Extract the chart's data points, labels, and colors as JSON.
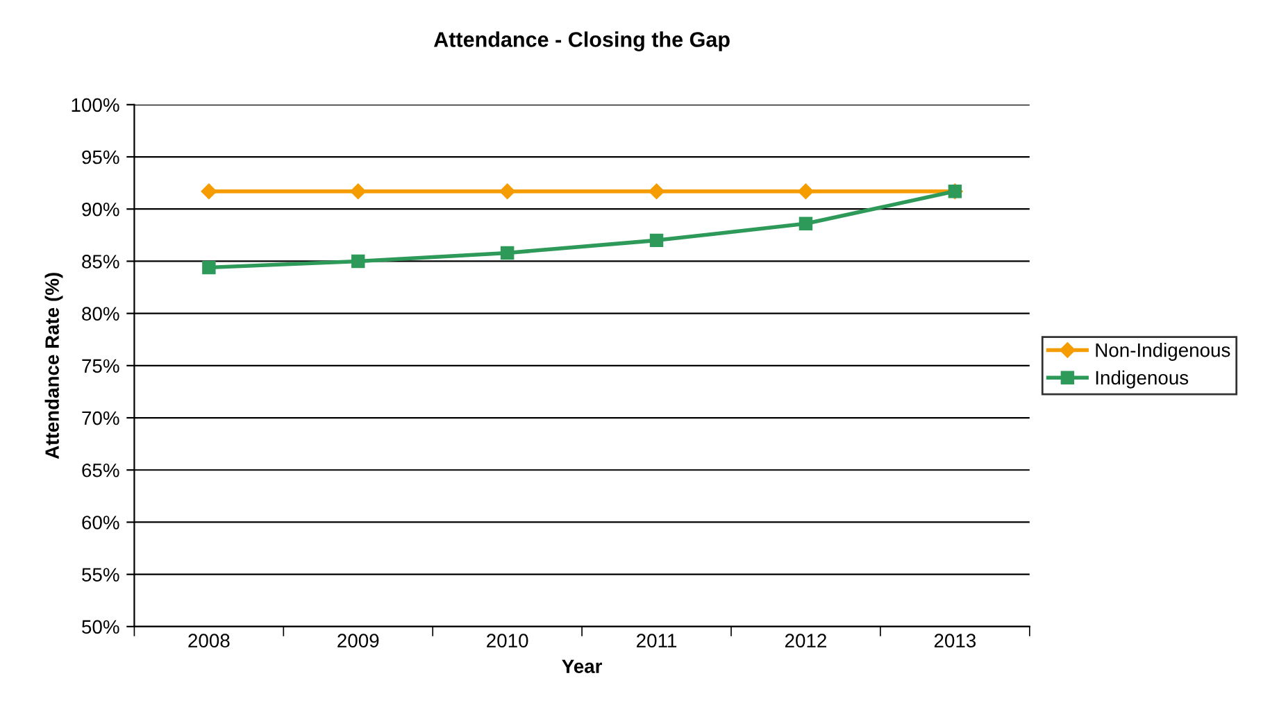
{
  "chart_data": {
    "type": "line",
    "title": "Attendance - Closing the Gap",
    "xlabel": "Year",
    "ylabel": "Attendance Rate (%)",
    "categories": [
      "2008",
      "2009",
      "2010",
      "2011",
      "2012",
      "2013"
    ],
    "series": [
      {
        "name": "Non-Indigenous",
        "color": "#f59c00",
        "marker": "diamond",
        "values": [
          91.7,
          91.7,
          91.7,
          91.7,
          91.7,
          91.7
        ]
      },
      {
        "name": "Indigenous",
        "color": "#2e9a5a",
        "marker": "square",
        "values": [
          84.4,
          85.0,
          85.8,
          87.0,
          88.6,
          91.7
        ]
      }
    ],
    "ylim": [
      50,
      100
    ],
    "yticks": [
      {
        "value": 50,
        "label": "50%"
      },
      {
        "value": 55,
        "label": "55%"
      },
      {
        "value": 60,
        "label": "60%"
      },
      {
        "value": 65,
        "label": "65%"
      },
      {
        "value": 70,
        "label": "70%"
      },
      {
        "value": 75,
        "label": "75%"
      },
      {
        "value": 80,
        "label": "80%"
      },
      {
        "value": 85,
        "label": "85%"
      },
      {
        "value": 90,
        "label": "90%"
      },
      {
        "value": 95,
        "label": "95%"
      },
      {
        "value": 100,
        "label": "100%"
      }
    ],
    "grid": "y",
    "legend": "right",
    "line_style": "solid"
  }
}
